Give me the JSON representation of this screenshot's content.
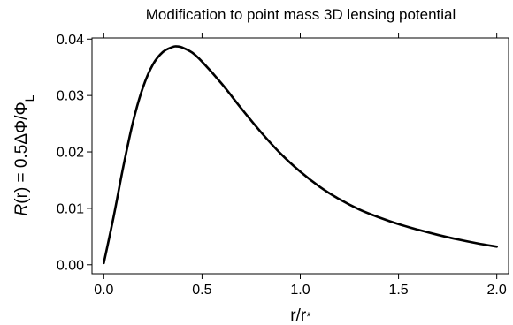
{
  "chart_data": {
    "type": "line",
    "title": "Modification to point mass 3D lensing potential",
    "xlabel": "r/r*",
    "ylabel": "R(r) = 0.5ΔΦ/ΦL",
    "xlim": [
      -0.06,
      2.06
    ],
    "ylim": [
      -0.0016,
      0.0402
    ],
    "x_ticks": [
      0.0,
      0.5,
      1.0,
      1.5,
      2.0
    ],
    "x_tick_labels": [
      "0.0",
      "0.5",
      "1.0",
      "1.5",
      "2.0"
    ],
    "y_ticks": [
      0.0,
      0.01,
      0.02,
      0.03,
      0.04
    ],
    "y_tick_labels": [
      "0.00",
      "0.01",
      "0.02",
      "0.03",
      "0.04"
    ],
    "grid": false,
    "series": [
      {
        "color": "#000000",
        "x": [
          0.0,
          0.05,
          0.1,
          0.15,
          0.2,
          0.25,
          0.3,
          0.35,
          0.375,
          0.4,
          0.45,
          0.5,
          0.6,
          0.7,
          0.8,
          0.9,
          1.0,
          1.1,
          1.2,
          1.3,
          1.4,
          1.5,
          1.6,
          1.7,
          1.8,
          1.9,
          2.0
        ],
        "y": [
          0.0003,
          0.0085,
          0.0175,
          0.0255,
          0.0315,
          0.0355,
          0.0377,
          0.0386,
          0.0387,
          0.0385,
          0.0376,
          0.036,
          0.0321,
          0.0277,
          0.0235,
          0.0197,
          0.0165,
          0.0138,
          0.0116,
          0.0098,
          0.0084,
          0.0072,
          0.0062,
          0.0053,
          0.0045,
          0.0038,
          0.0032
        ]
      }
    ]
  }
}
